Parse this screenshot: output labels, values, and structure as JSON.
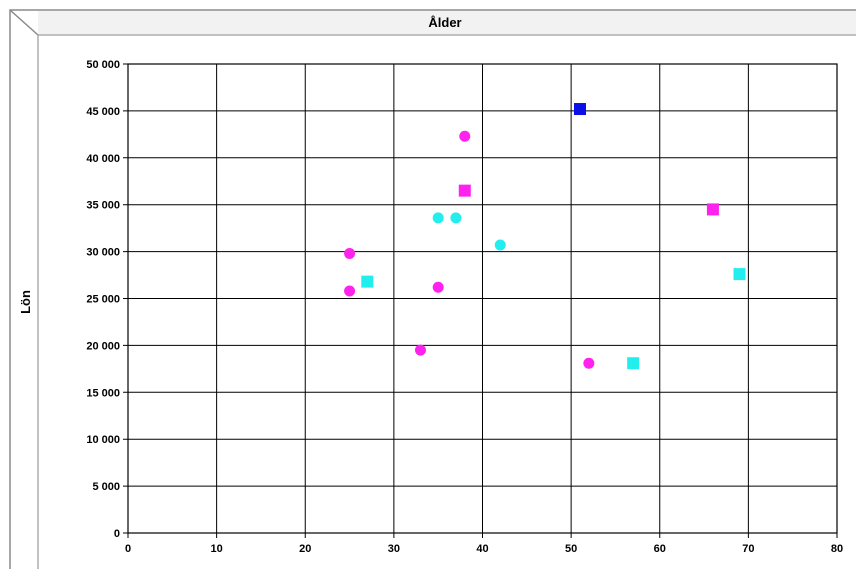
{
  "chart_data": {
    "type": "scatter",
    "title": "Ålder",
    "xlabel": "",
    "ylabel": "Lön",
    "xlim": [
      0,
      80
    ],
    "ylim": [
      0,
      50000
    ],
    "x_ticks": [
      "0",
      "10",
      "20",
      "30",
      "40",
      "50",
      "60",
      "70",
      "80"
    ],
    "y_ticks": [
      "0",
      "5 000",
      "10 000",
      "15 000",
      "20 000",
      "25 000",
      "30 000",
      "35 000",
      "40 000",
      "45 000",
      "50 000"
    ],
    "grid": true,
    "legend": "none",
    "colors": {
      "magenta": "#ff22ee",
      "cyan": "#22eeee",
      "blue": "#0a10e6"
    },
    "points": [
      {
        "x": 25,
        "y": 29800,
        "shape": "circle",
        "color": "#ff22ee"
      },
      {
        "x": 25,
        "y": 25800,
        "shape": "circle",
        "color": "#ff22ee"
      },
      {
        "x": 33,
        "y": 19500,
        "shape": "circle",
        "color": "#ff22ee"
      },
      {
        "x": 35,
        "y": 26200,
        "shape": "circle",
        "color": "#ff22ee"
      },
      {
        "x": 38,
        "y": 42300,
        "shape": "circle",
        "color": "#ff22ee"
      },
      {
        "x": 52,
        "y": 18100,
        "shape": "circle",
        "color": "#ff22ee"
      },
      {
        "x": 35,
        "y": 33600,
        "shape": "circle",
        "color": "#22eeee"
      },
      {
        "x": 37,
        "y": 33600,
        "shape": "circle",
        "color": "#22eeee"
      },
      {
        "x": 42,
        "y": 30700,
        "shape": "circle",
        "color": "#22eeee"
      },
      {
        "x": 27,
        "y": 26800,
        "shape": "square",
        "color": "#22eeee"
      },
      {
        "x": 57,
        "y": 18100,
        "shape": "square",
        "color": "#22eeee"
      },
      {
        "x": 69,
        "y": 27600,
        "shape": "square",
        "color": "#22eeee"
      },
      {
        "x": 38,
        "y": 36500,
        "shape": "square",
        "color": "#ff22ee"
      },
      {
        "x": 66,
        "y": 34500,
        "shape": "square",
        "color": "#ff22ee"
      },
      {
        "x": 51,
        "y": 45200,
        "shape": "square",
        "color": "#0a10e6"
      }
    ]
  }
}
